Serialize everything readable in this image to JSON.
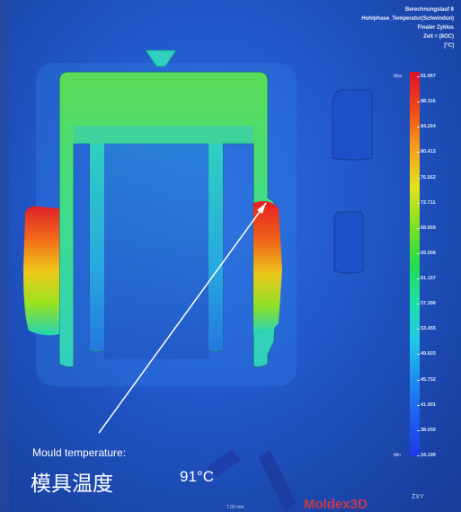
{
  "header": {
    "line1": "Berechnungslauf 8",
    "line2": "Hohlphase_Temperatur(Schwindun)",
    "line3": "Finaler Zyklus",
    "line4": "Zeit = (8OC)",
    "line5": "[°C]"
  },
  "legend": {
    "max_label": "Max",
    "min_label": "Min",
    "ticks": [
      "91.967",
      "88.116",
      "84.264",
      "80.413",
      "76.562",
      "72.711",
      "68.859",
      "65.008",
      "61.157",
      "57.306",
      "53.455",
      "49.603",
      "45.752",
      "41.901",
      "38.050",
      "34.199"
    ]
  },
  "callout": {
    "title": "Mould temperature:",
    "chinese": "模具温度",
    "value": "91°C"
  },
  "footer": {
    "logo": "Moldex3D",
    "scale": "7.00 mm",
    "axes": "ZXY"
  },
  "colors": {
    "hot": "#e0102a",
    "warm": "#f7a01a",
    "mid": "#22dc4a",
    "cool": "#1ee0a8",
    "background": "#2157c8"
  }
}
